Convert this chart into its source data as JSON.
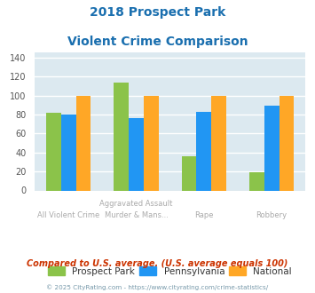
{
  "title_line1": "2018 Prospect Park",
  "title_line2": "Violent Crime Comparison",
  "title_color": "#1a6faf",
  "cat_labels_top": [
    "",
    "Aggravated Assault",
    "",
    ""
  ],
  "cat_labels_bot": [
    "All Violent Crime",
    "Murder & Mans...",
    "Rape",
    "Robbery"
  ],
  "series": {
    "Prospect Park": [
      82,
      114,
      36,
      19
    ],
    "Pennsylvania": [
      80,
      76,
      83,
      89
    ],
    "National": [
      100,
      100,
      100,
      100
    ]
  },
  "colors": {
    "Prospect Park": "#8bc34a",
    "Pennsylvania": "#2196f3",
    "National": "#ffa726"
  },
  "ylim": [
    0,
    145
  ],
  "yticks": [
    0,
    20,
    40,
    60,
    80,
    100,
    120,
    140
  ],
  "background_color": "#dce9f0",
  "grid_color": "#ffffff",
  "footer_note": "Compared to U.S. average. (U.S. average equals 100)",
  "footer_note_color": "#cc3300",
  "copyright": "© 2025 CityRating.com - https://www.cityrating.com/crime-statistics/",
  "copyright_color": "#7799aa",
  "bar_width": 0.22
}
